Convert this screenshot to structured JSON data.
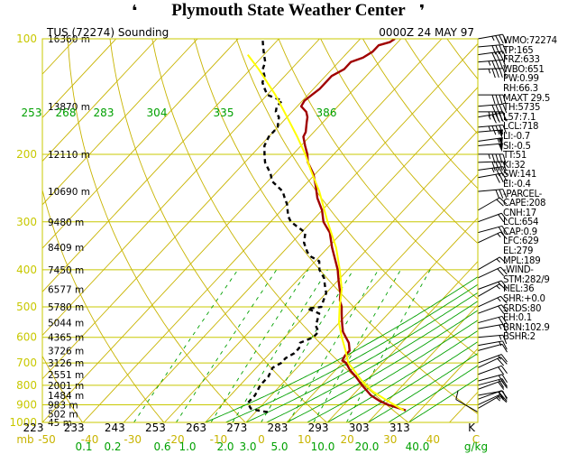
{
  "title": "Plymouth State Weather Center",
  "chart_data": {
    "type": "skew-t log-p sounding",
    "station_label": "TUS (72274) Sounding",
    "time_label": "0000Z 24 MAY 97",
    "pressure_axis": {
      "unit": "mb",
      "ticks": [
        100,
        200,
        300,
        400,
        500,
        600,
        700,
        800,
        900,
        1000
      ],
      "range": [
        100,
        1000
      ]
    },
    "temperature_axis": {
      "unit": "C",
      "ticks": [
        "-50",
        "-40",
        "-30",
        "-20",
        "-10",
        "0",
        "10",
        "20",
        "30",
        "40"
      ],
      "range": [
        -50,
        40
      ]
    },
    "kelvin_axis": {
      "unit": "K",
      "ticks": [
        "223",
        "233",
        "243",
        "253",
        "263",
        "273",
        "283",
        "293",
        "303",
        "313"
      ]
    },
    "mixing_ratio_axis": {
      "unit": "g/kg",
      "ticks": [
        "0.1",
        "0.2",
        "0.6",
        "1.0",
        "2.0",
        "3.0",
        "5.0",
        "10.0",
        "20.0",
        "40.0"
      ]
    },
    "theta_labels": [
      "253",
      "268",
      "283",
      "304",
      "335",
      "386"
    ],
    "height_labels": [
      {
        "p": 100,
        "text": "16360 m"
      },
      {
        "p": 150,
        "text": "13870 m"
      },
      {
        "p": 200,
        "text": "12110 m"
      },
      {
        "p": 250,
        "text": "10690 m"
      },
      {
        "p": 300,
        "text": "9480 m"
      },
      {
        "p": 350,
        "text": "8409 m"
      },
      {
        "p": 400,
        "text": "7450 m"
      },
      {
        "p": 450,
        "text": "6577 m"
      },
      {
        "p": 500,
        "text": "5780 m"
      },
      {
        "p": 550,
        "text": "5044 m"
      },
      {
        "p": 600,
        "text": "4365 m"
      },
      {
        "p": 650,
        "text": "3726 m"
      },
      {
        "p": 700,
        "text": "3126 m"
      },
      {
        "p": 750,
        "text": "2551 m"
      },
      {
        "p": 800,
        "text": "2001 m"
      },
      {
        "p": 850,
        "text": "1484 m"
      },
      {
        "p": 900,
        "text": "983 m"
      },
      {
        "p": 950,
        "text": "502 m"
      },
      {
        "p": 1000,
        "text": "45 m"
      }
    ],
    "series": [
      {
        "name": "temperature",
        "color": "#a00000",
        "points": [
          [
            930,
            36.5
          ],
          [
            900,
            31
          ],
          [
            880,
            28
          ],
          [
            850,
            24.5
          ],
          [
            800,
            20
          ],
          [
            760,
            16.5
          ],
          [
            730,
            13.5
          ],
          [
            700,
            11
          ],
          [
            690,
            9.5
          ],
          [
            670,
            9
          ],
          [
            650,
            9
          ],
          [
            620,
            7
          ],
          [
            600,
            5
          ],
          [
            580,
            3
          ],
          [
            560,
            1.5
          ],
          [
            540,
            0
          ],
          [
            520,
            -1.5
          ],
          [
            500,
            -3
          ],
          [
            480,
            -5
          ],
          [
            460,
            -6.5
          ],
          [
            450,
            -7.5
          ],
          [
            430,
            -9.5
          ],
          [
            410,
            -11.5
          ],
          [
            400,
            -12.5
          ],
          [
            380,
            -15
          ],
          [
            350,
            -19
          ],
          [
            320,
            -23
          ],
          [
            300,
            -27
          ],
          [
            280,
            -30
          ],
          [
            260,
            -34
          ],
          [
            240,
            -37.5
          ],
          [
            225,
            -40.5
          ],
          [
            210,
            -44.5
          ],
          [
            200,
            -46.5
          ],
          [
            190,
            -49
          ],
          [
            180,
            -51.5
          ],
          [
            175,
            -52
          ],
          [
            165,
            -54
          ],
          [
            160,
            -55
          ],
          [
            155,
            -56.5
          ],
          [
            150,
            -59
          ],
          [
            145,
            -59.5
          ],
          [
            140,
            -59
          ],
          [
            135,
            -58.5
          ],
          [
            125,
            -58.5
          ],
          [
            120,
            -57
          ],
          [
            115,
            -57
          ],
          [
            112,
            -55
          ],
          [
            108,
            -54
          ],
          [
            104,
            -54
          ],
          [
            102,
            -52
          ],
          [
            100,
            -51.5
          ]
        ]
      },
      {
        "name": "dewpoint",
        "color": "#000000",
        "points": [
          [
            940,
            3
          ],
          [
            930,
            0
          ],
          [
            920,
            -2
          ],
          [
            890,
            -4
          ],
          [
            850,
            -4
          ],
          [
            800,
            -5
          ],
          [
            760,
            -5
          ],
          [
            720,
            -6
          ],
          [
            700,
            -5
          ],
          [
            680,
            -5
          ],
          [
            660,
            -4
          ],
          [
            640,
            -4
          ],
          [
            620,
            -5
          ],
          [
            600,
            -3
          ],
          [
            580,
            -3
          ],
          [
            560,
            -5
          ],
          [
            540,
            -6
          ],
          [
            520,
            -7
          ],
          [
            505,
            -11
          ],
          [
            500,
            -8
          ],
          [
            480,
            -9
          ],
          [
            460,
            -10
          ],
          [
            440,
            -12
          ],
          [
            420,
            -14
          ],
          [
            400,
            -17
          ],
          [
            390,
            -18
          ],
          [
            380,
            -19
          ],
          [
            370,
            -22
          ],
          [
            360,
            -24
          ],
          [
            340,
            -27
          ],
          [
            320,
            -29
          ],
          [
            310,
            -32
          ],
          [
            300,
            -35
          ],
          [
            290,
            -37
          ],
          [
            270,
            -40
          ],
          [
            260,
            -42
          ],
          [
            250,
            -44
          ],
          [
            235,
            -49
          ],
          [
            225,
            -51
          ],
          [
            210,
            -55
          ],
          [
            200,
            -57
          ],
          [
            190,
            -59
          ],
          [
            180,
            -60
          ],
          [
            175,
            -60
          ],
          [
            170,
            -60
          ],
          [
            165,
            -61
          ],
          [
            160,
            -62
          ],
          [
            155,
            -64
          ],
          [
            150,
            -65
          ],
          [
            145,
            -65
          ],
          [
            140,
            -70
          ],
          [
            135,
            -72
          ],
          [
            130,
            -74
          ],
          [
            125,
            -75
          ],
          [
            120,
            -77
          ],
          [
            115,
            -78
          ],
          [
            110,
            -80
          ],
          [
            105,
            -82
          ],
          [
            100,
            -84
          ],
          [
            95,
            -86
          ]
        ]
      },
      {
        "name": "parcel",
        "color": "#ffff00",
        "points": [
          [
            930,
            36
          ],
          [
            880,
            30
          ],
          [
            830,
            24
          ],
          [
            780,
            19
          ],
          [
            720,
            13.5
          ],
          [
            700,
            11.5
          ],
          [
            650,
            8
          ],
          [
            600,
            4
          ],
          [
            550,
            0
          ],
          [
            500,
            -3.5
          ],
          [
            450,
            -7
          ],
          [
            400,
            -12
          ],
          [
            350,
            -18
          ],
          [
            300,
            -26
          ],
          [
            250,
            -35
          ],
          [
            220,
            -42
          ],
          [
            200,
            -47
          ],
          [
            180,
            -53
          ],
          [
            160,
            -60
          ],
          [
            140,
            -68
          ],
          [
            120,
            -78
          ],
          [
            110,
            -84
          ]
        ]
      }
    ],
    "wind_barbs": [
      {
        "p": 100,
        "dir": 260,
        "kt": 35
      },
      {
        "p": 105,
        "dir": 265,
        "kt": 40
      },
      {
        "p": 110,
        "dir": 262,
        "kt": 40
      },
      {
        "p": 115,
        "dir": 265,
        "kt": 45
      },
      {
        "p": 120,
        "dir": 268,
        "kt": 45
      },
      {
        "p": 140,
        "dir": 270,
        "kt": 40
      },
      {
        "p": 150,
        "dir": 265,
        "kt": 40
      },
      {
        "p": 155,
        "dir": 270,
        "kt": 45
      },
      {
        "p": 160,
        "dir": 260,
        "kt": 45
      },
      {
        "p": 170,
        "dir": 265,
        "kt": 45
      },
      {
        "p": 175,
        "dir": 265,
        "kt": 50
      },
      {
        "p": 185,
        "dir": 262,
        "kt": 55
      },
      {
        "p": 190,
        "dir": 265,
        "kt": 50
      },
      {
        "p": 200,
        "dir": 270,
        "kt": 45
      },
      {
        "p": 210,
        "dir": 268,
        "kt": 40
      },
      {
        "p": 220,
        "dir": 262,
        "kt": 35
      },
      {
        "p": 230,
        "dir": 260,
        "kt": 30
      },
      {
        "p": 250,
        "dir": 265,
        "kt": 30
      },
      {
        "p": 280,
        "dir": 240,
        "kt": 20
      },
      {
        "p": 300,
        "dir": 250,
        "kt": 20
      },
      {
        "p": 320,
        "dir": 255,
        "kt": 20
      },
      {
        "p": 340,
        "dir": 245,
        "kt": 15
      },
      {
        "p": 400,
        "dir": 240,
        "kt": 15
      },
      {
        "p": 420,
        "dir": 245,
        "kt": 20
      },
      {
        "p": 450,
        "dir": 250,
        "kt": 15
      },
      {
        "p": 470,
        "dir": 240,
        "kt": 15
      },
      {
        "p": 500,
        "dir": 245,
        "kt": 15
      },
      {
        "p": 520,
        "dir": 250,
        "kt": 20
      },
      {
        "p": 550,
        "dir": 255,
        "kt": 20
      },
      {
        "p": 570,
        "dir": 260,
        "kt": 15
      },
      {
        "p": 600,
        "dir": 265,
        "kt": 15
      },
      {
        "p": 630,
        "dir": 260,
        "kt": 15
      },
      {
        "p": 650,
        "dir": 255,
        "kt": 10
      },
      {
        "p": 700,
        "dir": 250,
        "kt": 15
      },
      {
        "p": 720,
        "dir": 245,
        "kt": 20
      },
      {
        "p": 750,
        "dir": 250,
        "kt": 20
      },
      {
        "p": 780,
        "dir": 255,
        "kt": 20
      },
      {
        "p": 800,
        "dir": 255,
        "kt": 20
      },
      {
        "p": 820,
        "dir": 250,
        "kt": 20
      },
      {
        "p": 850,
        "dir": 260,
        "kt": 20
      },
      {
        "p": 870,
        "dir": 250,
        "kt": 20
      },
      {
        "p": 900,
        "dir": 245,
        "kt": 15
      },
      {
        "p": 920,
        "dir": 240,
        "kt": 15
      },
      {
        "p": 940,
        "dir": 120,
        "kt": 10
      }
    ]
  },
  "indices": [
    "WMO:72274",
    "TP:165",
    "FRZ:633",
    "WBO:651",
    "PW:0.99",
    "RH:66.3",
    "MAXT 29.5",
    "TH:5735",
    "L57:7.1",
    "LCL:718",
    "LI:-0.7",
    "SI:-0.5",
    "TT:51",
    "KI:32",
    "SW:141",
    "EI:-0.4",
    "-PARCEL-",
    "CAPE:208",
    "CNH:17",
    "LCL:654",
    "CAP:0.9",
    "LFC:629",
    "EL:279",
    "MPL:189",
    "-WIND-",
    "STM:282/9",
    "HEL:36",
    "SHR:+0.0",
    "SRDS:80",
    "EH:0.1",
    "BRN:102.9",
    "BSHR:2"
  ],
  "colors": {
    "isobar": "#c8c800",
    "isotherm": "#c8b400",
    "dry_adiabat": "#c8b400",
    "moist_adiabat": "#00a000",
    "mixing_ratio": "#00a000",
    "axis_label": "#c8c800",
    "temp_axis_label": "#c8b400",
    "mixing_label": "#00a000"
  }
}
